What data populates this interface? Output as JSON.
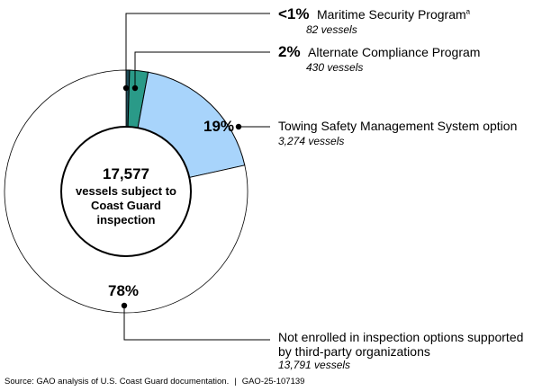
{
  "chart_data": {
    "type": "pie",
    "center_label": [
      "17,577",
      "vessels subject to",
      "Coast Guard",
      "inspection"
    ],
    "total": 17577,
    "slices": [
      {
        "pct_label": "<1%",
        "name": "Maritime Security Program",
        "footnote": "a",
        "count_label": "82 vessels",
        "value": 82,
        "color": "#1f4e5a"
      },
      {
        "pct_label": "2%",
        "name": "Alternate Compliance Program",
        "count_label": "430 vessels",
        "value": 430,
        "color": "#2a9a88"
      },
      {
        "pct_label": "19%",
        "name": "Towing Safety Management System option",
        "count_label": "3,274 vessels",
        "value": 3274,
        "color": "#a8d4fb"
      },
      {
        "pct_label": "78%",
        "name": [
          "Not enrolled in inspection options supported",
          "by third-party organizations"
        ],
        "count_label": "13,791 vessels",
        "value": 13791,
        "color": "#ffffff"
      }
    ]
  },
  "source": {
    "text": "Source: GAO analysis of U.S. Coast Guard documentation.",
    "separator": "|",
    "report_id": "GAO-25-107139"
  }
}
